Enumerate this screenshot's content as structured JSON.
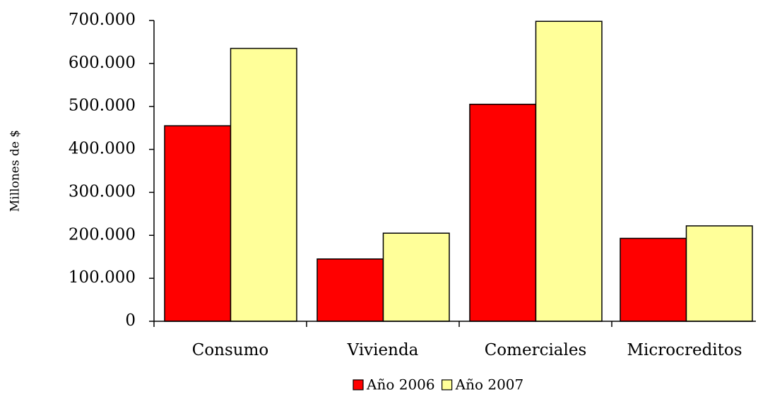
{
  "chart_data": {
    "type": "bar",
    "y_label": "Millones de $",
    "categories": [
      "Consumo",
      "Vivienda",
      "Comerciales",
      "Microcreditos"
    ],
    "series": [
      {
        "name": "Año 2006",
        "color": "#ff0000",
        "values": [
          455000,
          145000,
          505000,
          193000
        ]
      },
      {
        "name": "Año 2007",
        "color": "#ffff99",
        "values": [
          635000,
          205000,
          698000,
          222000
        ]
      }
    ],
    "ylim": [
      0,
      700000
    ],
    "yticks": [
      0,
      {
        "value": 100000,
        "label": "100.000"
      },
      {
        "value": 200000,
        "label": "200.000"
      },
      {
        "value": 300000,
        "label": "300.000"
      },
      {
        "value": 400000,
        "label": "400.000"
      },
      {
        "value": 500000,
        "label": "500.000"
      },
      {
        "value": 600000,
        "label": "600.000"
      },
      {
        "value": 700000,
        "label": "700.000"
      }
    ],
    "grid": false,
    "legend": "bottom"
  }
}
